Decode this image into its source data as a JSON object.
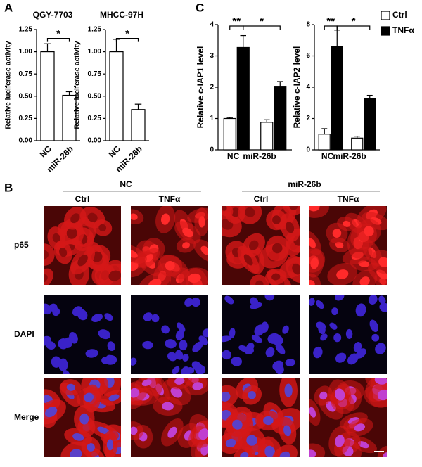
{
  "panel_labels": [
    "A",
    "B",
    "C"
  ],
  "chart_data": [
    {
      "type": "bar",
      "title": "QGY-7703",
      "ylabel": "Relative luciferase activity",
      "categories": [
        "NC",
        "miR-26b"
      ],
      "values": [
        1.0,
        0.51
      ],
      "errors": [
        0.09,
        0.04
      ],
      "color": "#ffffff",
      "ylim": [
        0,
        1.25
      ],
      "yticks": [
        {
          "value": 0,
          "label": "0.00"
        },
        {
          "value": 0.25,
          "label": "0.25"
        },
        {
          "value": 0.5,
          "label": "0.50"
        },
        {
          "value": 0.75,
          "label": "0.75"
        },
        {
          "value": 1,
          "label": "1.00"
        },
        {
          "value": 1.25,
          "label": "1.25"
        }
      ],
      "annotations": [
        "*"
      ]
    },
    {
      "type": "bar",
      "title": "MHCC-97H",
      "ylabel": "Relative luciferase activity",
      "categories": [
        "NC",
        "miR-26b"
      ],
      "values": [
        1.0,
        0.35
      ],
      "errors": [
        0.14,
        0.06
      ],
      "color": "#ffffff",
      "ylim": [
        0,
        1.25
      ],
      "yticks": [
        {
          "value": 0,
          "label": "0.00"
        },
        {
          "value": 0.25,
          "label": "0.25"
        },
        {
          "value": 0.5,
          "label": "0.50"
        },
        {
          "value": 0.75,
          "label": "0.75"
        },
        {
          "value": 1,
          "label": "1.00"
        },
        {
          "value": 1.25,
          "label": "1.25"
        }
      ],
      "annotations": [
        "*"
      ]
    },
    {
      "type": "bar",
      "ylabel": "Relative c-IAP1 level",
      "categories": [
        "NC",
        "miR-26b"
      ],
      "series": [
        {
          "name": "Ctrl",
          "color": "#ffffff",
          "values": [
            1.0,
            0.88
          ],
          "errors": [
            0.03,
            0.08
          ]
        },
        {
          "name": "TNFα",
          "color": "#000000",
          "values": [
            3.27,
            2.03
          ],
          "errors": [
            0.38,
            0.15
          ]
        }
      ],
      "ylim": [
        0,
        4
      ],
      "yticks": [
        0,
        1,
        2,
        3,
        4
      ],
      "annotations": [
        "**",
        "*"
      ]
    },
    {
      "type": "bar",
      "ylabel": "Relative c-IAP2 level",
      "categories": [
        "NC",
        "miR-26b"
      ],
      "series": [
        {
          "name": "Ctrl",
          "color": "#ffffff",
          "values": [
            1.0,
            0.75
          ],
          "errors": [
            0.35,
            0.12
          ]
        },
        {
          "name": "TNFα",
          "color": "#000000",
          "values": [
            6.6,
            3.28
          ],
          "errors": [
            1.05,
            0.2
          ]
        }
      ],
      "ylim": [
        0,
        8
      ],
      "yticks": [
        0,
        2,
        4,
        6,
        8
      ],
      "annotations": [
        "**",
        "*"
      ],
      "legend": "right"
    }
  ],
  "figure_b": {
    "groups": [
      {
        "label": "NC",
        "columns": [
          "Ctrl",
          "TNFα"
        ]
      },
      {
        "label": "miR-26b",
        "columns": [
          "Ctrl",
          "TNFα"
        ]
      }
    ],
    "rows": [
      "p65",
      "DAPI",
      "Merge"
    ]
  }
}
